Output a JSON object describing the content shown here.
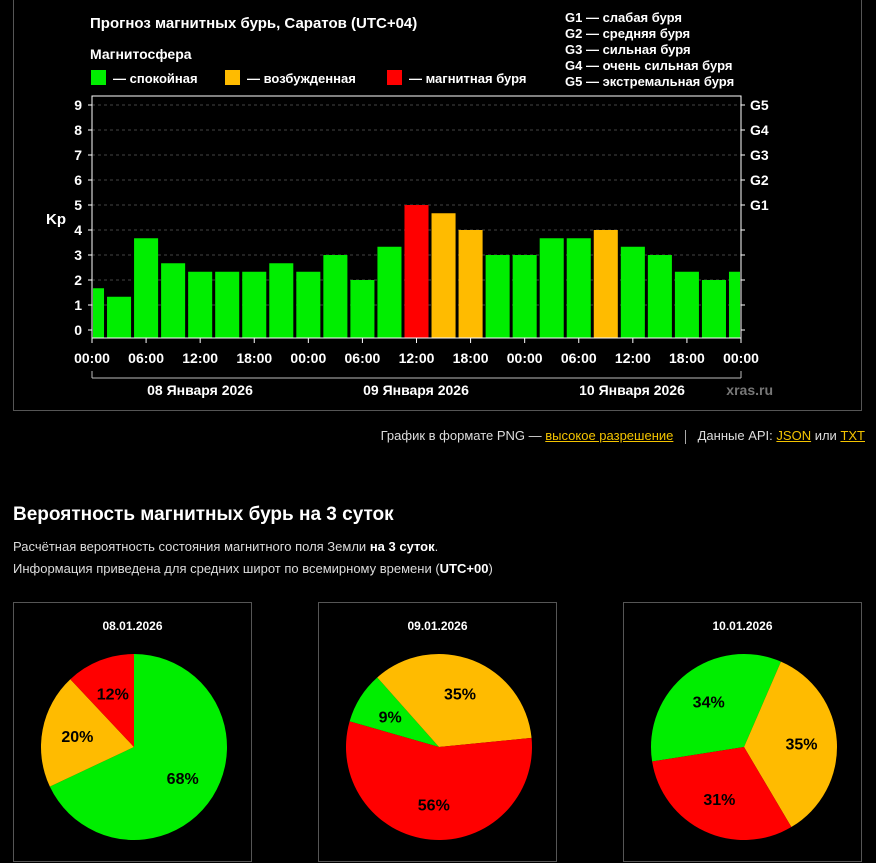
{
  "chart_title": "Прогноз магнитных бурь, Саратов (UTC+04)",
  "legend": {
    "title": "Магнитосфера",
    "items": [
      {
        "label": "— спокойная",
        "color": "#00ee00"
      },
      {
        "label": "— возбужденная",
        "color": "#ffbb00"
      },
      {
        "label": "— магнитная буря",
        "color": "#ff0000"
      }
    ],
    "storm_levels": [
      "G1 — слабая буря",
      "G2 — средняя буря",
      "G3 — сильная буря",
      "G4 — очень сильная буря",
      "G5 — экстремальная буря"
    ]
  },
  "watermark": "xras.ru",
  "chart_data": [
    {
      "type": "bar",
      "title": "Прогноз магнитных бурь, Саратов (UTC+04)",
      "ylabel": "Kp",
      "ylim": [
        0,
        9
      ],
      "y_ticks": [
        "0",
        "1",
        "2",
        "3",
        "4",
        "5",
        "6",
        "7",
        "8",
        "9"
      ],
      "right_ticks": [
        {
          "label": "G1",
          "value": 5
        },
        {
          "label": "G2",
          "value": 6
        },
        {
          "label": "G3",
          "value": 7
        },
        {
          "label": "G4",
          "value": 8
        },
        {
          "label": "G5",
          "value": 9
        }
      ],
      "x_ticks": [
        "00:00",
        "06:00",
        "12:00",
        "18:00",
        "00:00",
        "06:00",
        "12:00",
        "18:00",
        "00:00",
        "06:00",
        "12:00",
        "18:00",
        "00:00"
      ],
      "days": [
        "08 Января 2026",
        "09 Января 2026",
        "10 Января 2026"
      ],
      "grid": true,
      "values": [
        1.67,
        1.33,
        3.67,
        2.67,
        2.33,
        2.33,
        2.33,
        2.67,
        2.33,
        3.0,
        2.0,
        3.33,
        5.0,
        4.67,
        4.0,
        3.0,
        3.0,
        3.67,
        3.67,
        4.0,
        3.33,
        3.0,
        2.33,
        2.0,
        2.33
      ],
      "status": [
        "q",
        "q",
        "q",
        "q",
        "q",
        "q",
        "q",
        "q",
        "q",
        "q",
        "q",
        "q",
        "s",
        "a",
        "a",
        "q",
        "q",
        "q",
        "q",
        "a",
        "q",
        "q",
        "q",
        "q",
        "q"
      ]
    },
    {
      "type": "pie",
      "title": "08.01.2026",
      "labels": [
        "спокойная",
        "возбужденная",
        "магнитная буря"
      ],
      "values": [
        68,
        20,
        12
      ]
    },
    {
      "type": "pie",
      "title": "09.01.2026",
      "labels": [
        "спокойная",
        "возбужденная",
        "магнитная буря"
      ],
      "values": [
        9,
        35,
        56
      ]
    },
    {
      "type": "pie",
      "title": "10.01.2026",
      "labels": [
        "спокойная",
        "возбужденная",
        "магнитная буря"
      ],
      "values": [
        34,
        35,
        31
      ]
    }
  ],
  "links": {
    "png_text": "График в формате PNG —",
    "png_link": "высокое разрешение",
    "api_text": "Данные API:",
    "json_link": "JSON",
    "or_text": "или",
    "txt_link": "TXT"
  },
  "section": {
    "title": "Вероятность магнитных бурь на 3 суток",
    "desc1_pre": "Расчётная вероятность состояния магнитного поля Земли",
    "desc1_bold": "на 3 суток",
    "desc1_post": ".",
    "desc2_pre": "Информация приведена для средних широт по всемирному времени (",
    "desc2_bold": "UTC+00",
    "desc2_post": ")"
  }
}
